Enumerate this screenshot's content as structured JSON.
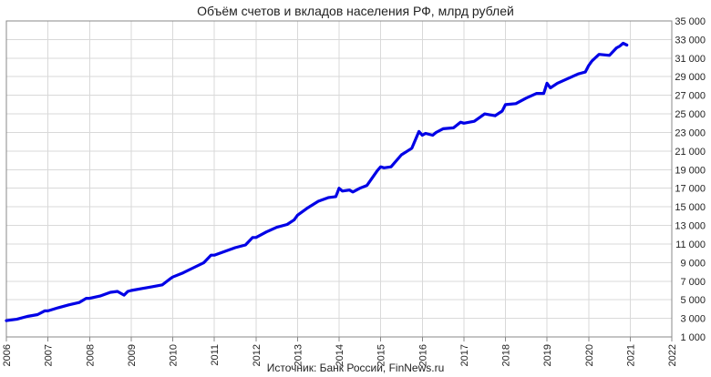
{
  "chart_data": {
    "type": "line",
    "title": "Объём счетов и вкладов населения РФ, млрд рублей",
    "source": "Источник: Банк России, FinNews.ru",
    "xlim": [
      2006,
      2022
    ],
    "ylim": [
      1000,
      35000
    ],
    "x_ticks": [
      "2006",
      "2007",
      "2008",
      "2009",
      "2010",
      "2011",
      "2012",
      "2013",
      "2014",
      "2015",
      "2016",
      "2017",
      "2018",
      "2019",
      "2020",
      "2021",
      "2022"
    ],
    "y_ticks": [
      "1 000",
      "3 000",
      "5 000",
      "7 000",
      "9 000",
      "11 000",
      "13 000",
      "15 000",
      "17 000",
      "19 000",
      "21 000",
      "23 000",
      "25 000",
      "27 000",
      "29 000",
      "31 000",
      "33 000",
      "35 000"
    ],
    "y_tick_values": [
      1000,
      3000,
      5000,
      7000,
      9000,
      11000,
      13000,
      15000,
      17000,
      19000,
      21000,
      23000,
      25000,
      27000,
      29000,
      31000,
      33000,
      35000
    ],
    "series_color": "#0000e6",
    "series": [
      {
        "x": [
          2006.0,
          2006.25,
          2006.5,
          2006.75,
          2006.92,
          2007.0,
          2007.25,
          2007.5,
          2007.75,
          2007.92,
          2008.0,
          2008.25,
          2008.5,
          2008.67,
          2008.83,
          2008.92,
          2009.0,
          2009.25,
          2009.5,
          2009.75,
          2009.92,
          2010.0,
          2010.25,
          2010.5,
          2010.75,
          2010.92,
          2011.0,
          2011.25,
          2011.5,
          2011.75,
          2011.92,
          2012.0,
          2012.25,
          2012.5,
          2012.75,
          2012.92,
          2013.0,
          2013.25,
          2013.5,
          2013.75,
          2013.92,
          2014.0,
          2014.08,
          2014.25,
          2014.33,
          2014.5,
          2014.67,
          2014.92,
          2015.0,
          2015.08,
          2015.25,
          2015.5,
          2015.75,
          2015.92,
          2016.0,
          2016.08,
          2016.25,
          2016.33,
          2016.5,
          2016.75,
          2016.92,
          2017.0,
          2017.25,
          2017.5,
          2017.75,
          2017.92,
          2018.0,
          2018.25,
          2018.5,
          2018.75,
          2018.92,
          2019.0,
          2019.08,
          2019.25,
          2019.5,
          2019.75,
          2019.92,
          2020.0,
          2020.08,
          2020.25,
          2020.5,
          2020.67,
          2020.75,
          2020.83,
          2020.92
        ],
        "y": [
          2750,
          2900,
          3200,
          3400,
          3800,
          3800,
          4150,
          4450,
          4700,
          5150,
          5150,
          5400,
          5800,
          5900,
          5500,
          5900,
          6000,
          6200,
          6400,
          6600,
          7200,
          7450,
          7900,
          8450,
          9000,
          9800,
          9800,
          10200,
          10600,
          10900,
          11700,
          11700,
          12300,
          12800,
          13100,
          13600,
          14100,
          14900,
          15600,
          16000,
          16100,
          17000,
          16700,
          16800,
          16600,
          17000,
          17300,
          18900,
          19300,
          19200,
          19300,
          20600,
          21300,
          23100,
          22700,
          22900,
          22700,
          23000,
          23400,
          23500,
          24100,
          24000,
          24200,
          25000,
          24800,
          25300,
          26000,
          26100,
          26700,
          27200,
          27200,
          28300,
          27800,
          28300,
          28800,
          29300,
          29500,
          30200,
          30700,
          31400,
          31300,
          32100,
          32300,
          32600,
          32400
        ]
      }
    ]
  }
}
